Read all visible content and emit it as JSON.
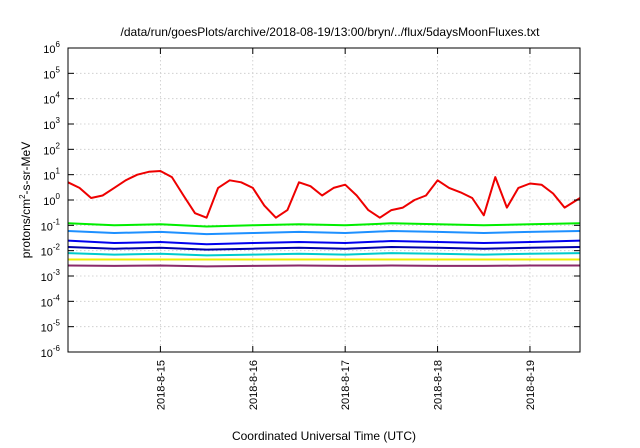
{
  "chart_data": {
    "type": "line",
    "title": "/data/run/goesPlots/archive/2018-08-19/13:00/bryn/../flux/5daysMoonFluxes.txt",
    "xlabel": "Coordinated Universal Time (UTC)",
    "ylabel_parts": {
      "base": "protons/cm",
      "sup": "2",
      "rest": "-s-sr-MeV"
    },
    "yscale": "log",
    "ylim": [
      1e-06,
      1000000.0
    ],
    "xlim": [
      "2018-08-14T00:00",
      "2018-08-19T13:00"
    ],
    "grid": true,
    "legend": "none",
    "x_ticks": [
      "2018-8-15",
      "2018-8-16",
      "2018-8-17",
      "2018-8-18",
      "2018-8-19"
    ],
    "y_ticks": [
      {
        "base": "10",
        "exp": "-6"
      },
      {
        "base": "10",
        "exp": "-5"
      },
      {
        "base": "10",
        "exp": "-4"
      },
      {
        "base": "10",
        "exp": "-3"
      },
      {
        "base": "10",
        "exp": "-2"
      },
      {
        "base": "10",
        "exp": "-1"
      },
      {
        "base": "10",
        "exp": "0"
      },
      {
        "base": "10",
        "exp": "1"
      },
      {
        "base": "10",
        "exp": "2"
      },
      {
        "base": "10",
        "exp": "3"
      },
      {
        "base": "10",
        "exp": "4"
      },
      {
        "base": "10",
        "exp": "5"
      },
      {
        "base": "10",
        "exp": "6"
      }
    ],
    "series": [
      {
        "color": "#ee0000",
        "x": [
          "2018-08-14T00:00",
          "2018-08-14T03:00",
          "2018-08-14T06:00",
          "2018-08-14T09:00",
          "2018-08-14T12:00",
          "2018-08-14T15:00",
          "2018-08-14T18:00",
          "2018-08-14T21:00",
          "2018-08-15T00:00",
          "2018-08-15T03:00",
          "2018-08-15T06:00",
          "2018-08-15T09:00",
          "2018-08-15T12:00",
          "2018-08-15T15:00",
          "2018-08-15T18:00",
          "2018-08-15T21:00",
          "2018-08-16T00:00",
          "2018-08-16T03:00",
          "2018-08-16T06:00",
          "2018-08-16T09:00",
          "2018-08-16T12:00",
          "2018-08-16T15:00",
          "2018-08-16T18:00",
          "2018-08-16T21:00",
          "2018-08-17T00:00",
          "2018-08-17T03:00",
          "2018-08-17T06:00",
          "2018-08-17T09:00",
          "2018-08-17T12:00",
          "2018-08-17T15:00",
          "2018-08-17T18:00",
          "2018-08-17T21:00",
          "2018-08-18T00:00",
          "2018-08-18T03:00",
          "2018-08-18T06:00",
          "2018-08-18T09:00",
          "2018-08-18T12:00",
          "2018-08-18T15:00",
          "2018-08-18T18:00",
          "2018-08-18T21:00",
          "2018-08-19T00:00",
          "2018-08-19T03:00",
          "2018-08-19T06:00",
          "2018-08-19T09:00",
          "2018-08-19T13:00"
        ],
        "values": [
          5,
          3,
          1.2,
          1.5,
          3,
          6,
          10,
          13,
          14,
          8,
          1.5,
          0.3,
          0.2,
          3,
          6,
          5,
          3,
          0.6,
          0.2,
          0.4,
          5,
          3.5,
          1.5,
          3,
          4,
          1.5,
          0.4,
          0.2,
          0.4,
          0.5,
          1.0,
          1.5,
          6,
          3,
          2,
          1.2,
          0.25,
          8,
          0.5,
          3,
          4.5,
          4,
          1.8,
          0.5,
          1.2
        ]
      },
      {
        "color": "#00ee00",
        "x": [
          "2018-08-14T00:00",
          "2018-08-14T12:00",
          "2018-08-15T00:00",
          "2018-08-15T12:00",
          "2018-08-16T00:00",
          "2018-08-16T12:00",
          "2018-08-17T00:00",
          "2018-08-17T12:00",
          "2018-08-18T00:00",
          "2018-08-18T12:00",
          "2018-08-19T00:00",
          "2018-08-19T13:00"
        ],
        "values": [
          0.12,
          0.1,
          0.11,
          0.09,
          0.1,
          0.11,
          0.1,
          0.12,
          0.11,
          0.1,
          0.11,
          0.12
        ]
      },
      {
        "color": "#1e90ff",
        "x": [
          "2018-08-14T00:00",
          "2018-08-14T12:00",
          "2018-08-15T00:00",
          "2018-08-15T12:00",
          "2018-08-16T00:00",
          "2018-08-16T12:00",
          "2018-08-17T00:00",
          "2018-08-17T12:00",
          "2018-08-18T00:00",
          "2018-08-18T12:00",
          "2018-08-19T00:00",
          "2018-08-19T13:00"
        ],
        "values": [
          0.06,
          0.05,
          0.055,
          0.045,
          0.05,
          0.055,
          0.05,
          0.06,
          0.055,
          0.05,
          0.055,
          0.06
        ]
      },
      {
        "color": "#0000ee",
        "x": [
          "2018-08-14T00:00",
          "2018-08-14T12:00",
          "2018-08-15T00:00",
          "2018-08-15T12:00",
          "2018-08-16T00:00",
          "2018-08-16T12:00",
          "2018-08-17T00:00",
          "2018-08-17T12:00",
          "2018-08-18T00:00",
          "2018-08-18T12:00",
          "2018-08-19T00:00",
          "2018-08-19T13:00"
        ],
        "values": [
          0.025,
          0.02,
          0.022,
          0.018,
          0.02,
          0.022,
          0.02,
          0.024,
          0.022,
          0.02,
          0.022,
          0.025
        ]
      },
      {
        "color": "#0000aa",
        "x": [
          "2018-08-14T00:00",
          "2018-08-14T12:00",
          "2018-08-15T00:00",
          "2018-08-15T12:00",
          "2018-08-16T00:00",
          "2018-08-16T12:00",
          "2018-08-17T00:00",
          "2018-08-17T12:00",
          "2018-08-18T00:00",
          "2018-08-18T12:00",
          "2018-08-19T00:00",
          "2018-08-19T13:00"
        ],
        "values": [
          0.014,
          0.012,
          0.013,
          0.011,
          0.012,
          0.013,
          0.012,
          0.014,
          0.013,
          0.012,
          0.013,
          0.014
        ]
      },
      {
        "color": "#00cccc",
        "x": [
          "2018-08-14T00:00",
          "2018-08-14T12:00",
          "2018-08-15T00:00",
          "2018-08-15T12:00",
          "2018-08-16T00:00",
          "2018-08-16T12:00",
          "2018-08-17T00:00",
          "2018-08-17T12:00",
          "2018-08-18T00:00",
          "2018-08-18T12:00",
          "2018-08-19T00:00",
          "2018-08-19T13:00"
        ],
        "values": [
          0.008,
          0.007,
          0.0075,
          0.0065,
          0.007,
          0.0075,
          0.007,
          0.008,
          0.0075,
          0.007,
          0.0075,
          0.008
        ]
      },
      {
        "color": "#eeee00",
        "x": [
          "2018-08-14T00:00",
          "2018-08-14T12:00",
          "2018-08-15T00:00",
          "2018-08-15T12:00",
          "2018-08-16T00:00",
          "2018-08-16T12:00",
          "2018-08-17T00:00",
          "2018-08-17T12:00",
          "2018-08-18T00:00",
          "2018-08-18T12:00",
          "2018-08-19T00:00",
          "2018-08-19T13:00"
        ],
        "values": [
          0.0045,
          0.0045,
          0.0045,
          0.0045,
          0.0045,
          0.0045,
          0.0045,
          0.0045,
          0.0045,
          0.0045,
          0.0045,
          0.0045
        ]
      },
      {
        "color": "#8b2a6a",
        "x": [
          "2018-08-14T00:00",
          "2018-08-14T12:00",
          "2018-08-15T00:00",
          "2018-08-15T12:00",
          "2018-08-16T00:00",
          "2018-08-16T12:00",
          "2018-08-17T00:00",
          "2018-08-17T12:00",
          "2018-08-18T00:00",
          "2018-08-18T12:00",
          "2018-08-19T00:00",
          "2018-08-19T13:00"
        ],
        "values": [
          0.0026,
          0.0025,
          0.0026,
          0.0024,
          0.0025,
          0.0026,
          0.0025,
          0.0026,
          0.0025,
          0.0025,
          0.0026,
          0.0026
        ]
      }
    ]
  }
}
